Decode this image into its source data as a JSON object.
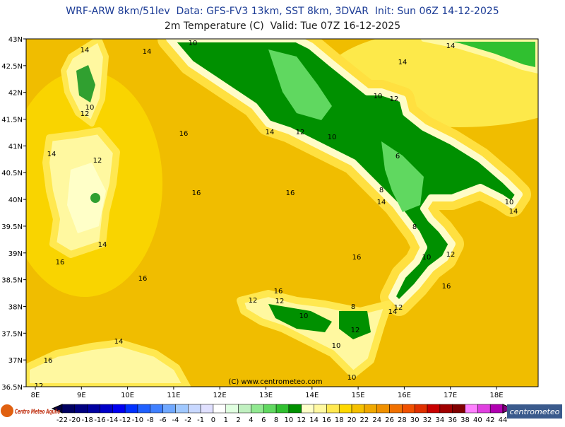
{
  "header": {
    "title": "WRF-ARW 8km/51lev  Data: GFS-FV3 13km, SST 8km, 3DVAR  Init: Sun 06Z 14-12-2025",
    "subtitle": "2m Temperature (C)  Valid: Tue 07Z 16-12-2025"
  },
  "axes": {
    "lat_labels": [
      "43N",
      "42.5N",
      "42N",
      "41.5N",
      "41N",
      "40.5N",
      "40N",
      "39.5N",
      "39N",
      "38.5N",
      "38N",
      "37.5N",
      "37N",
      "36.5N"
    ],
    "lon_labels": [
      "8E",
      "9E",
      "10E",
      "11E",
      "12E",
      "13E",
      "14E",
      "15E",
      "16E",
      "17E",
      "18E"
    ]
  },
  "contour_labels": [
    "14",
    "14",
    "10",
    "14",
    "14",
    "10",
    "12",
    "16",
    "14",
    "12",
    "10",
    "10",
    "12",
    "14",
    "12",
    "6",
    "16",
    "16",
    "8",
    "14",
    "10",
    "14",
    "8",
    "14",
    "16",
    "10",
    "12",
    "16",
    "16",
    "16",
    "16",
    "12",
    "12",
    "10",
    "8",
    "12",
    "14",
    "12",
    "10",
    "14",
    "16",
    "10",
    "12"
  ],
  "credit": "(C) www.centrometeo.com",
  "colorbar": {
    "labels": [
      "-22",
      "-20",
      "-18",
      "-16",
      "-14",
      "-12",
      "-10",
      "-8",
      "-6",
      "-4",
      "-2",
      "-1",
      "0",
      "1",
      "2",
      "4",
      "6",
      "8",
      "10",
      "12",
      "14",
      "16",
      "18",
      "20",
      "22",
      "24",
      "26",
      "28",
      "30",
      "32",
      "34",
      "36",
      "38",
      "40",
      "42",
      "44"
    ],
    "colors": [
      "#000060",
      "#000080",
      "#0000a0",
      "#0000c8",
      "#0000f0",
      "#0030ff",
      "#2060ff",
      "#4080ff",
      "#70a8ff",
      "#a0c8ff",
      "#c8d8ff",
      "#e0e0ff",
      "#ffffff",
      "#e0ffe0",
      "#c0f0c0",
      "#90e890",
      "#60d860",
      "#30c030",
      "#009000",
      "#ffffc8",
      "#fff8a0",
      "#ffe850",
      "#ffd800",
      "#f5c000",
      "#f0a800",
      "#f09000",
      "#f07000",
      "#f05000",
      "#e03000",
      "#c80000",
      "#a00000",
      "#800000",
      "#ff80ff",
      "#e040e0",
      "#b000b0"
    ]
  },
  "logos": {
    "left": "Centro Meteo Aquilo",
    "right": "centrometeo"
  }
}
